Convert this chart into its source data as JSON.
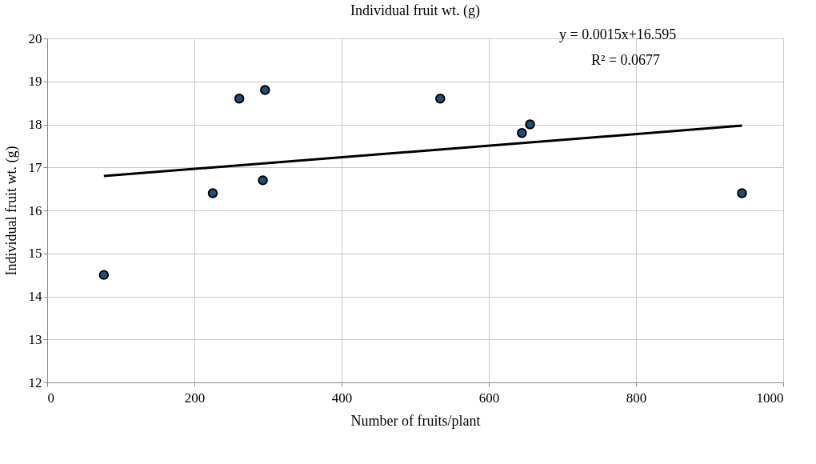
{
  "chart_data": {
    "type": "scatter",
    "title": "Individual fruit wt. (g)",
    "xlabel": "Number of fruits/plant",
    "ylabel": "Individual fruit wt. (g)",
    "xlim": [
      0,
      1000
    ],
    "xticks": [
      0,
      200,
      400,
      600,
      800,
      1000
    ],
    "ylim": [
      12,
      20
    ],
    "yticks": [
      12,
      13,
      14,
      15,
      16,
      17,
      18,
      19,
      20
    ],
    "grid": true,
    "series": [
      {
        "color": "#1f4e79",
        "marker": "circle",
        "x": [
          77,
          225,
          261,
          296,
          293,
          534,
          645,
          656,
          944
        ],
        "values": [
          14.5,
          16.4,
          18.6,
          18.8,
          16.7,
          18.6,
          17.8,
          18.0,
          16.4
        ]
      },
      {
        "type": "line",
        "color": "#000000",
        "marker": "none",
        "line_style": "solid",
        "x": [
          77,
          944
        ],
        "values": [
          16.8,
          17.97
        ]
      }
    ],
    "annotations": [
      "y = 0.0015x+16.595",
      "R² = 0.0677"
    ]
  }
}
